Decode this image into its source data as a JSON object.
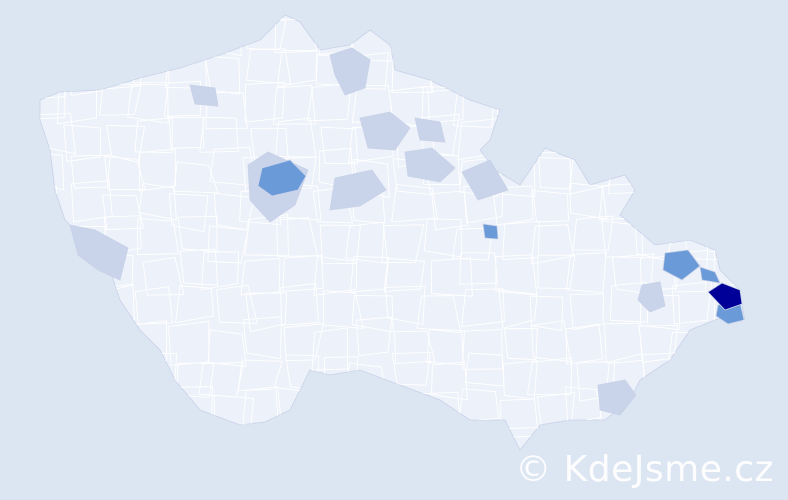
{
  "watermark": "© KdeJsme.cz",
  "colors": {
    "background": "#dce5f2",
    "district_default": "#edf1f9",
    "district_border": "#c8d2e8",
    "level_low": "#c9d3ea",
    "level_mid": "#6b9ad9",
    "level_high": "#000099"
  }
}
